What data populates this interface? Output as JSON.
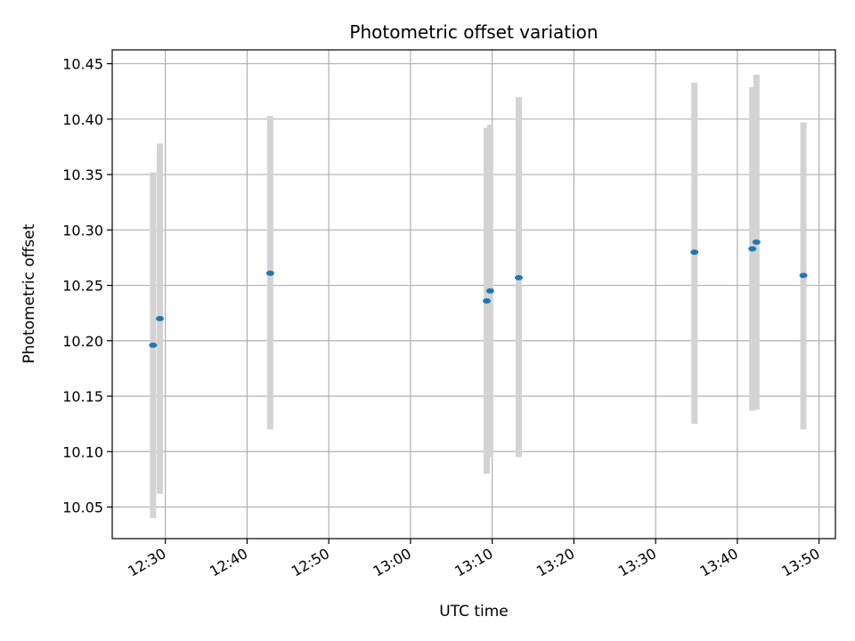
{
  "chart_data": {
    "type": "scatter",
    "title": "Photometric offset variation",
    "xlabel": "UTC time",
    "ylabel": "Photometric offset",
    "grid": true,
    "legend": "none",
    "xlim": [
      "12:23:30",
      "13:52:00"
    ],
    "ylim": [
      10.0215,
      10.4625
    ],
    "xticks": [
      "12:30",
      "12:40",
      "12:50",
      "13:00",
      "13:10",
      "13:20",
      "13:30",
      "13:40",
      "13:50"
    ],
    "yticks": [
      "10.05",
      "10.10",
      "10.15",
      "10.20",
      "10.25",
      "10.30",
      "10.35",
      "10.40",
      "10.45"
    ],
    "colors": {
      "point": "#1f77b4",
      "errorbar": "#d3d3d3",
      "grid": "#b0b0b0"
    },
    "points": [
      {
        "x": "12:28:30",
        "y": 10.196,
        "ylow": 10.04,
        "yhigh": 10.352
      },
      {
        "x": "12:29:20",
        "y": 10.22,
        "ylow": 10.062,
        "yhigh": 10.378
      },
      {
        "x": "12:42:50",
        "y": 10.261,
        "ylow": 10.12,
        "yhigh": 10.403
      },
      {
        "x": "13:09:20",
        "y": 10.236,
        "ylow": 10.08,
        "yhigh": 10.392
      },
      {
        "x": "13:09:45",
        "y": 10.245,
        "ylow": 10.095,
        "yhigh": 10.395
      },
      {
        "x": "13:13:15",
        "y": 10.257,
        "ylow": 10.095,
        "yhigh": 10.42
      },
      {
        "x": "13:34:45",
        "y": 10.28,
        "ylow": 10.125,
        "yhigh": 10.433
      },
      {
        "x": "13:41:50",
        "y": 10.283,
        "ylow": 10.137,
        "yhigh": 10.429
      },
      {
        "x": "13:42:20",
        "y": 10.289,
        "ylow": 10.138,
        "yhigh": 10.44
      },
      {
        "x": "13:48:05",
        "y": 10.259,
        "ylow": 10.12,
        "yhigh": 10.397
      }
    ]
  }
}
